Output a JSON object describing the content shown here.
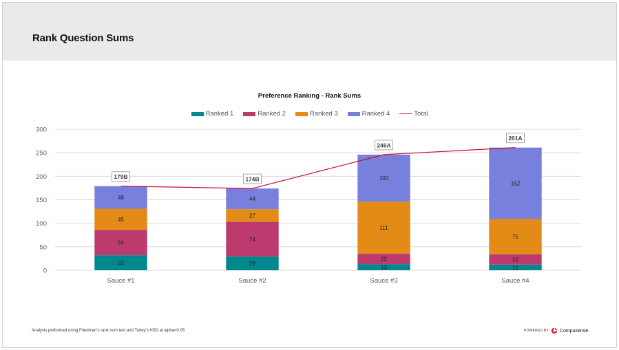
{
  "page": {
    "title": "Rank Question Sums",
    "footnote": "Analysis performed using Friedman's rank sum test and Tukey's HSD at alpha=0.05",
    "powered_by": "POWERED BY",
    "brand": "Compusense.",
    "brand_icon": "compusense-logo-icon"
  },
  "chart_data": {
    "type": "bar",
    "stacked": true,
    "title": "Preference Ranking - Rank Sums",
    "xlabel": "",
    "ylabel": "",
    "categories": [
      "Sauce #1",
      "Sauce #2",
      "Sauce #3",
      "Sauce #4"
    ],
    "ylim": [
      0,
      300
    ],
    "yticks": [
      0,
      50,
      100,
      150,
      200,
      250,
      300
    ],
    "grid": true,
    "legend_position": "top",
    "series": [
      {
        "name": "Ranked 1",
        "color": "#00888f",
        "values": [
          32,
          29,
          13,
          12
        ]
      },
      {
        "name": "Ranked 2",
        "color": "#bd3a6e",
        "values": [
          54,
          74,
          22,
          22
        ]
      },
      {
        "name": "Ranked 3",
        "color": "#e38b16",
        "values": [
          45,
          27,
          111,
          75
        ]
      },
      {
        "name": "Ranked 4",
        "color": "#7780dd",
        "values": [
          48,
          44,
          100,
          152
        ]
      }
    ],
    "line_series": {
      "name": "Total",
      "type": "line",
      "color": "#c8102e",
      "values": [
        179,
        174,
        246,
        261
      ]
    },
    "total_labels": [
      "179B",
      "174B",
      "246A",
      "261A"
    ]
  }
}
